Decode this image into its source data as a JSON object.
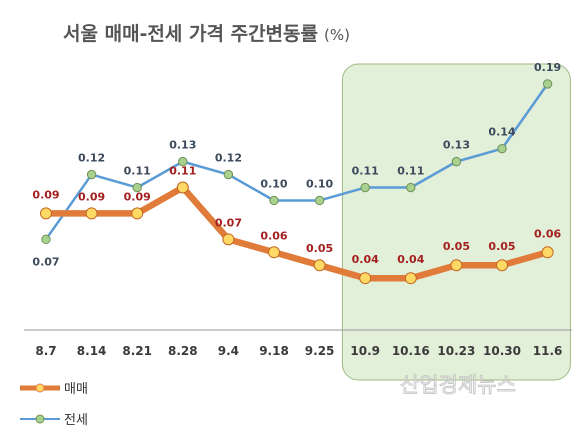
{
  "chart_data": {
    "type": "line",
    "title": "서울 매매-전세 가격 주간변동률",
    "title_unit": "(%)",
    "categories": [
      "8.7",
      "8.14",
      "8.21",
      "8.28",
      "9.4",
      "9.18",
      "9.25",
      "10.9",
      "10.16",
      "10.23",
      "10.30",
      "11.6"
    ],
    "series": [
      {
        "name": "매매",
        "color": "#e07b39",
        "marker_color": "#ffd966",
        "values": [
          0.09,
          0.09,
          0.09,
          0.11,
          0.07,
          0.06,
          0.05,
          0.04,
          0.04,
          0.05,
          0.05,
          0.06
        ]
      },
      {
        "name": "전세",
        "color": "#5b9bd5",
        "marker_color": "#a9d18e",
        "values": [
          0.07,
          0.12,
          0.11,
          0.13,
          0.12,
          0.1,
          0.1,
          0.11,
          0.11,
          0.13,
          0.14,
          0.19
        ]
      }
    ],
    "ylim": [
      0.0,
      0.21
    ],
    "grid": false,
    "legend_position": "bottom-left",
    "highlight_range": [
      "10.9",
      "11.6"
    ],
    "highlight_color": "#e2efd9",
    "watermark": "산업경제뉴스"
  }
}
